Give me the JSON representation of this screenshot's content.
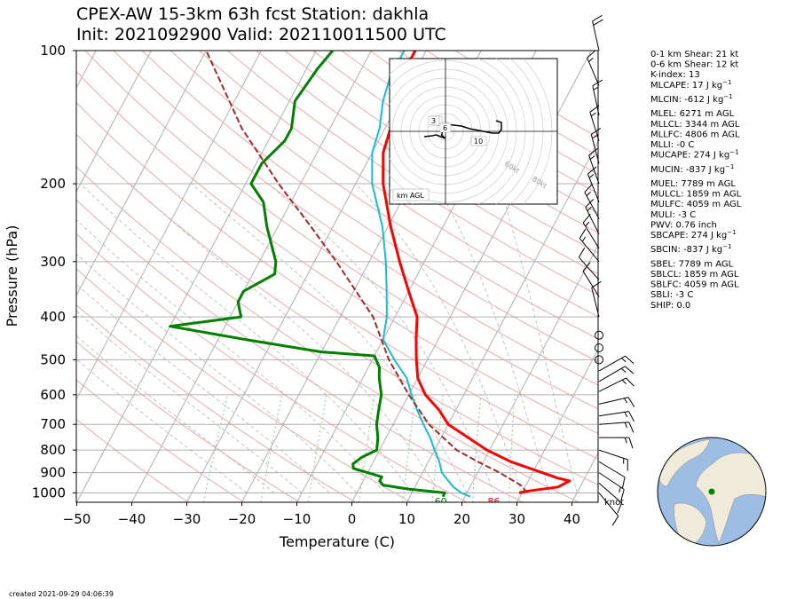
{
  "title": {
    "line1": "CPEX-AW 15-3km  63h fcst  Station: dakhla",
    "line2": "Init: 2021092900  Valid: 202110011500 UTC"
  },
  "created": "created 2021-09-29 04:06:39",
  "chart_data": {
    "type": "skew-t",
    "xlabel": "Temperature (C)",
    "ylabel": "Pressure (hPa)",
    "xlim": [
      -50,
      45
    ],
    "ylim": [
      1050,
      100
    ],
    "y_scale": "log",
    "x_ticks": [
      "−50",
      "−40",
      "−30",
      "−20",
      "−10",
      "0",
      "10",
      "20",
      "30",
      "40"
    ],
    "y_ticks": [
      "100",
      "200",
      "300",
      "400",
      "500",
      "600",
      "700",
      "800",
      "900",
      "1000"
    ],
    "colors": {
      "temperature": "#ff0000",
      "dewpoint": "#008000",
      "wetbulb": "#17becf",
      "parcel": "#a52a2a",
      "isobar": "#b0b0b0",
      "isotherm": "#b0b0b0",
      "dry_adiabat": "#f4a9a9",
      "moist_adiabat": "#b5b5b5",
      "mixing_ratio": "#8fc98f"
    },
    "series": [
      {
        "name": "temperature",
        "points": [
          [
            1000,
            29.5
          ],
          [
            990,
            31
          ],
          [
            970,
            36
          ],
          [
            940,
            37.5
          ],
          [
            925,
            35
          ],
          [
            850,
            25
          ],
          [
            800,
            19.5
          ],
          [
            700,
            10
          ],
          [
            650,
            7
          ],
          [
            600,
            3
          ],
          [
            550,
            0
          ],
          [
            500,
            -2
          ],
          [
            450,
            -4
          ],
          [
            400,
            -6
          ],
          [
            350,
            -10
          ],
          [
            300,
            -14.5
          ],
          [
            250,
            -19.5
          ],
          [
            200,
            -25
          ],
          [
            170,
            -28
          ],
          [
            150,
            -29
          ],
          [
            130,
            -31
          ],
          [
            115,
            -32
          ],
          [
            100,
            -32
          ]
        ]
      },
      {
        "name": "wetbulb",
        "points": [
          [
            1020,
            21
          ],
          [
            1000,
            19
          ],
          [
            970,
            17
          ],
          [
            940,
            15.5
          ],
          [
            900,
            13.5
          ],
          [
            850,
            12
          ],
          [
            800,
            10
          ],
          [
            750,
            8
          ],
          [
            700,
            5.5
          ],
          [
            650,
            3
          ],
          [
            600,
            0.5
          ],
          [
            550,
            -2
          ],
          [
            500,
            -6
          ],
          [
            450,
            -10
          ],
          [
            400,
            -11.5
          ],
          [
            350,
            -14
          ],
          [
            300,
            -17
          ],
          [
            250,
            -21
          ],
          [
            200,
            -27
          ],
          [
            170,
            -30
          ],
          [
            150,
            -31
          ],
          [
            130,
            -33
          ],
          [
            115,
            -34
          ],
          [
            100,
            -34
          ]
        ]
      },
      {
        "name": "dewpoint",
        "points": [
          [
            1020,
            16
          ],
          [
            1000,
            16
          ],
          [
            980,
            9
          ],
          [
            960,
            4
          ],
          [
            940,
            3
          ],
          [
            920,
            3
          ],
          [
            900,
            0
          ],
          [
            880,
            -3
          ],
          [
            860,
            -3.5
          ],
          [
            830,
            -2.5
          ],
          [
            800,
            -0.5
          ],
          [
            750,
            -1.5
          ],
          [
            700,
            -3
          ],
          [
            650,
            -4
          ],
          [
            600,
            -5
          ],
          [
            550,
            -7
          ],
          [
            520,
            -8
          ],
          [
            490,
            -10
          ],
          [
            480,
            -20
          ],
          [
            450,
            -35
          ],
          [
            420,
            -50
          ],
          [
            400,
            -38
          ],
          [
            370,
            -40
          ],
          [
            350,
            -40
          ],
          [
            320,
            -36
          ],
          [
            300,
            -37
          ],
          [
            250,
            -42
          ],
          [
            220,
            -45
          ],
          [
            200,
            -49
          ],
          [
            180,
            -49
          ],
          [
            160,
            -47
          ],
          [
            150,
            -47
          ],
          [
            130,
            -49
          ],
          [
            110,
            -48
          ],
          [
            100,
            -47
          ]
        ]
      },
      {
        "name": "parcel",
        "points": [
          [
            1000,
            31
          ],
          [
            960,
            29
          ],
          [
            900,
            24
          ],
          [
            850,
            19
          ],
          [
            800,
            14
          ],
          [
            700,
            6.5
          ],
          [
            600,
            0
          ],
          [
            500,
            -7
          ],
          [
            400,
            -14
          ],
          [
            300,
            -26
          ],
          [
            250,
            -34
          ],
          [
            200,
            -44
          ],
          [
            150,
            -56
          ],
          [
            100,
            -70
          ]
        ]
      }
    ],
    "surface_labels": {
      "dewpoint": "60",
      "temperature": "86"
    },
    "hodograph": {
      "range_label": "km AGL",
      "ring_labels": [
        "60kt",
        "80kt"
      ],
      "height_labels": [
        "1",
        "3",
        "6",
        "10"
      ],
      "trace_kt": [
        [
          -16,
          6
        ],
        [
          -10,
          5
        ],
        [
          -7,
          4
        ],
        [
          0,
          8
        ],
        [
          -3,
          4
        ],
        [
          0,
          -8
        ],
        [
          12,
          -6
        ],
        [
          18,
          -3
        ],
        [
          25,
          -1
        ],
        [
          35,
          2
        ],
        [
          40,
          2
        ],
        [
          42,
          -2
        ],
        [
          42,
          -10
        ],
        [
          38,
          -12
        ]
      ]
    },
    "wind_barbs": [
      {
        "p": 100,
        "u": -4,
        "v": 18
      },
      {
        "p": 120,
        "u": -6,
        "v": 14
      },
      {
        "p": 140,
        "u": -3,
        "v": 14
      },
      {
        "p": 160,
        "u": -5,
        "v": 16
      },
      {
        "p": 180,
        "u": -4,
        "v": 15
      },
      {
        "p": 200,
        "u": -5,
        "v": 14
      },
      {
        "p": 220,
        "u": -6,
        "v": 15
      },
      {
        "p": 240,
        "u": -7,
        "v": 13
      },
      {
        "p": 260,
        "u": -6,
        "v": 12
      },
      {
        "p": 280,
        "u": -8,
        "v": 13
      },
      {
        "p": 300,
        "u": -10,
        "v": 12
      },
      {
        "p": 330,
        "u": -8,
        "v": 9
      },
      {
        "p": 360,
        "u": -5,
        "v": 8
      },
      {
        "p": 400,
        "u": -2,
        "v": 8
      },
      {
        "p": 440,
        "u": 0,
        "v": 0
      },
      {
        "p": 470,
        "u": 0,
        "v": 0
      },
      {
        "p": 500,
        "u": 0,
        "v": 0
      },
      {
        "p": 530,
        "u": 14,
        "v": 8
      },
      {
        "p": 560,
        "u": 12,
        "v": 7
      },
      {
        "p": 590,
        "u": 12,
        "v": 6
      },
      {
        "p": 630,
        "u": 13,
        "v": 3
      },
      {
        "p": 670,
        "u": 13,
        "v": 2
      },
      {
        "p": 700,
        "u": 14,
        "v": 1
      },
      {
        "p": 750,
        "u": 15,
        "v": 0
      },
      {
        "p": 800,
        "u": 12,
        "v": -4
      },
      {
        "p": 850,
        "u": 10,
        "v": -6
      },
      {
        "p": 900,
        "u": 12,
        "v": -8
      },
      {
        "p": 950,
        "u": 8,
        "v": -7
      },
      {
        "p": 1000,
        "u": 5,
        "v": -6
      }
    ],
    "barb_unit": "knot",
    "params": [
      {
        "label": "0-1 km Shear: 21 kt"
      },
      {
        "label": "0-6 km Shear: 12 kt"
      },
      {
        "label": "K-index: 13"
      },
      {
        "label": "MLCAPE: 17 J kg",
        "sup": "−1"
      },
      {
        "label": "MLCIN: -612 J kg",
        "sup": "−1"
      },
      {
        "label": "MLEL: 6271 m AGL"
      },
      {
        "label": "MLLCL: 3344 m AGL"
      },
      {
        "label": "MLLFC: 4806 m AGL"
      },
      {
        "label": "MLLI: -0 C"
      },
      {
        "label": "MUCAPE: 274 J kg",
        "sup": "−1"
      },
      {
        "label": "MUCIN: -837 J kg",
        "sup": "−1"
      },
      {
        "label": "MUEL: 7789 m AGL"
      },
      {
        "label": "MULCL: 1859 m AGL"
      },
      {
        "label": "MULFC: 4059 m AGL"
      },
      {
        "label": "MULI: -3 C"
      },
      {
        "label": "PWV: 0.76 inch"
      },
      {
        "label": "SBCAPE: 274 J kg",
        "sup": "−1"
      },
      {
        "label": "SBCIN: -837 J kg",
        "sup": "−1"
      },
      {
        "label": "SBEL: 7789 m AGL"
      },
      {
        "label": "SBLCL: 1859 m AGL"
      },
      {
        "label": "SBLFC: 4059 m AGL"
      },
      {
        "label": "SBLI: -3 C"
      },
      {
        "label": "SHIP: 0.0"
      }
    ],
    "globe": {
      "land_color": "#efebd8",
      "ocean_color": "#9dbde5",
      "station_color": "#008000"
    }
  }
}
